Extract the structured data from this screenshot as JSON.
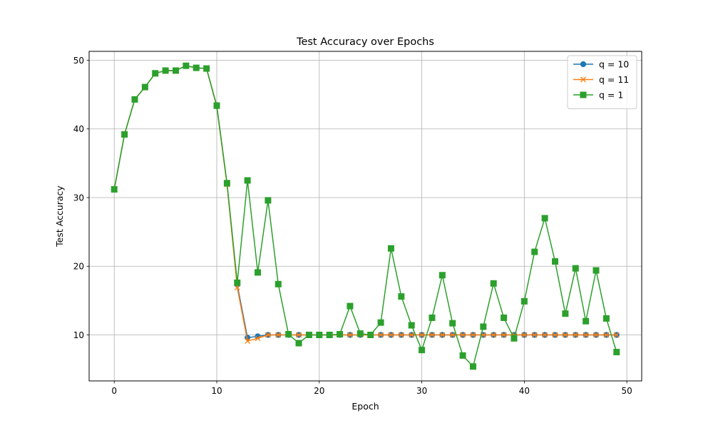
{
  "chart_data": {
    "type": "line",
    "title": "Test Accuracy over Epochs",
    "xlabel": "Epoch",
    "ylabel": "Test Accuracy",
    "xlim": [
      -2.45,
      51.45
    ],
    "ylim": [
      3.3,
      51.3
    ],
    "xticks": [
      0,
      10,
      20,
      30,
      40,
      50
    ],
    "yticks": [
      10,
      20,
      30,
      40,
      50
    ],
    "grid": true,
    "legend_position": "upper-right",
    "series": [
      {
        "name": "q = 10",
        "color": "#1f77b4",
        "marker": "circle",
        "x": [
          0,
          1,
          2,
          3,
          4,
          5,
          6,
          7,
          8,
          9,
          10,
          11,
          12,
          13,
          14,
          15,
          16,
          17,
          18,
          19,
          20,
          21,
          22,
          23,
          24,
          25,
          26,
          27,
          28,
          29,
          30,
          31,
          32,
          33,
          34,
          35,
          36,
          37,
          38,
          39,
          40,
          41,
          42,
          43,
          44,
          45,
          46,
          47,
          48,
          49
        ],
        "y": [
          31.2,
          39.2,
          44.3,
          46.1,
          48.1,
          48.5,
          48.5,
          49.2,
          48.9,
          48.8,
          43.3,
          32.0,
          17.3,
          9.6,
          9.8,
          10.0,
          10.0,
          10.0,
          10.0,
          10.0,
          10.0,
          10.0,
          10.0,
          10.0,
          10.0,
          10.0,
          10.0,
          10.0,
          10.0,
          10.0,
          10.0,
          10.0,
          10.0,
          10.0,
          10.0,
          10.0,
          10.0,
          10.0,
          10.0,
          10.0,
          10.0,
          10.0,
          10.0,
          10.0,
          10.0,
          10.0,
          10.0,
          10.0,
          10.0,
          10.0
        ]
      },
      {
        "name": "q = 11",
        "color": "#ff7f0e",
        "marker": "x",
        "x": [
          0,
          1,
          2,
          3,
          4,
          5,
          6,
          7,
          8,
          9,
          10,
          11,
          12,
          13,
          14,
          15,
          16,
          17,
          18,
          19,
          20,
          21,
          22,
          23,
          24,
          25,
          26,
          27,
          28,
          29,
          30,
          31,
          32,
          33,
          34,
          35,
          36,
          37,
          38,
          39,
          40,
          41,
          42,
          43,
          44,
          45,
          46,
          47,
          48,
          49
        ],
        "y": [
          31.2,
          39.2,
          44.3,
          46.1,
          48.1,
          48.5,
          48.5,
          49.2,
          48.9,
          48.8,
          43.3,
          31.9,
          16.9,
          9.1,
          9.5,
          10.0,
          10.0,
          10.0,
          10.0,
          10.0,
          10.0,
          10.0,
          10.0,
          10.0,
          10.0,
          10.0,
          10.0,
          10.0,
          10.0,
          10.0,
          10.0,
          10.0,
          10.0,
          10.0,
          10.0,
          10.0,
          10.0,
          10.0,
          10.0,
          10.0,
          10.0,
          10.0,
          10.0,
          10.0,
          10.0,
          10.0,
          10.0,
          10.0,
          10.0,
          10.0
        ]
      },
      {
        "name": "q = 1",
        "color": "#2ca02c",
        "marker": "square",
        "x": [
          0,
          1,
          2,
          3,
          4,
          5,
          6,
          7,
          8,
          9,
          10,
          11,
          12,
          13,
          14,
          15,
          16,
          17,
          18,
          19,
          20,
          21,
          22,
          23,
          24,
          25,
          26,
          27,
          28,
          29,
          30,
          31,
          32,
          33,
          34,
          35,
          36,
          37,
          38,
          39,
          40,
          41,
          42,
          43,
          44,
          45,
          46,
          47,
          48,
          49
        ],
        "y": [
          31.2,
          39.2,
          44.3,
          46.1,
          48.1,
          48.5,
          48.5,
          49.2,
          48.9,
          48.8,
          43.4,
          32.1,
          17.6,
          32.5,
          19.1,
          29.6,
          17.4,
          10.1,
          8.8,
          10.0,
          10.0,
          10.0,
          10.1,
          14.2,
          10.2,
          10.0,
          11.8,
          22.6,
          15.6,
          11.4,
          7.8,
          12.5,
          18.7,
          11.7,
          7.0,
          5.4,
          11.2,
          17.5,
          12.5,
          9.5,
          14.9,
          22.1,
          27.0,
          20.7,
          13.1,
          19.7,
          12.0,
          19.4,
          12.4,
          7.5
        ]
      }
    ]
  }
}
